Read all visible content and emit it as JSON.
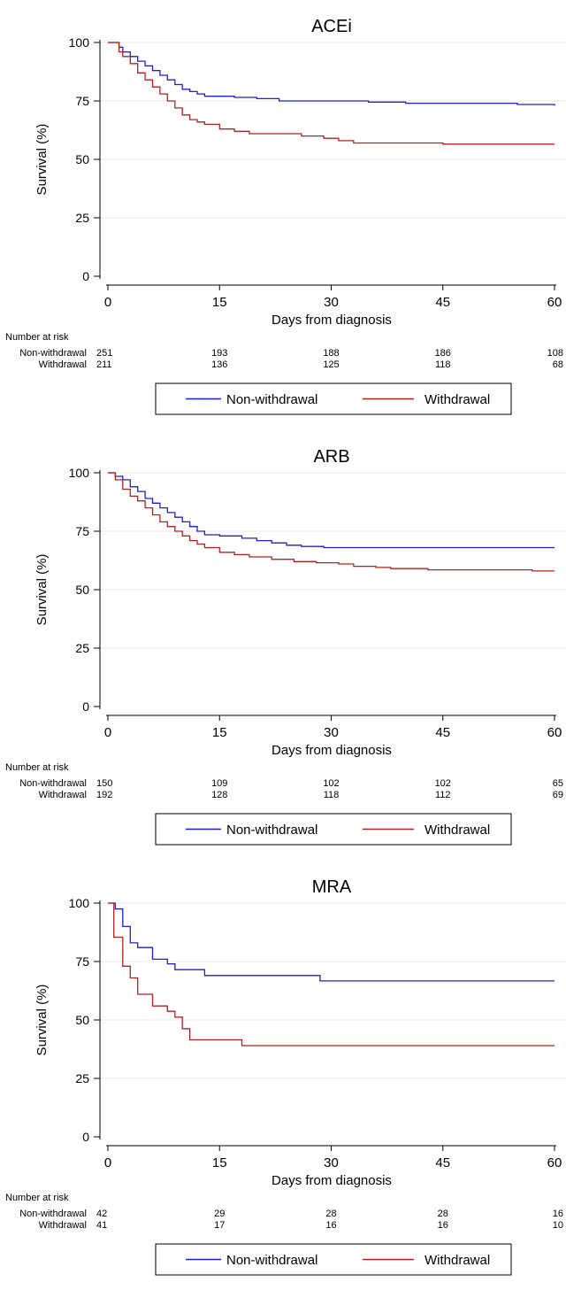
{
  "figure": {
    "ytitle": "Survival (%)",
    "xtitle": "Days from diagnosis",
    "risk_heading": "Number at risk",
    "legend": [
      "Non-withdrawal",
      "Withdrawal"
    ],
    "colors": {
      "non_withdrawal": "#1f1fd6",
      "withdrawal": "#b22222",
      "grid": "#e8e8e8"
    }
  },
  "chart_data": [
    {
      "type": "line",
      "title": "ACEi",
      "xlabel": "Days from diagnosis",
      "ylabel": "Survival (%)",
      "xlim": [
        0,
        60
      ],
      "ylim": [
        0,
        100
      ],
      "x_ticks": [
        0,
        15,
        30,
        45,
        60
      ],
      "y_ticks": [
        0,
        25,
        50,
        75,
        100
      ],
      "grid": true,
      "legend_position": "bottom",
      "series": [
        {
          "name": "Non-withdrawal",
          "color": "#1f1fd6",
          "points": [
            [
              0,
              100
            ],
            [
              1.5,
              98
            ],
            [
              2,
              96
            ],
            [
              3,
              94
            ],
            [
              4,
              92
            ],
            [
              5,
              90
            ],
            [
              6,
              88
            ],
            [
              7,
              86
            ],
            [
              8,
              84
            ],
            [
              9,
              82
            ],
            [
              10,
              80
            ],
            [
              11,
              79
            ],
            [
              12,
              78
            ],
            [
              13,
              77
            ],
            [
              17,
              76.5
            ],
            [
              20,
              76
            ],
            [
              23,
              75
            ],
            [
              30,
              75
            ],
            [
              35,
              74.5
            ],
            [
              40,
              74
            ],
            [
              50,
              74
            ],
            [
              55,
              73.5
            ],
            [
              60,
              73
            ]
          ]
        },
        {
          "name": "Withdrawal",
          "color": "#b22222",
          "points": [
            [
              0,
              100
            ],
            [
              1.5,
              96
            ],
            [
              2,
              94
            ],
            [
              3,
              91
            ],
            [
              4,
              87
            ],
            [
              5,
              84
            ],
            [
              6,
              81
            ],
            [
              7,
              78
            ],
            [
              8,
              75
            ],
            [
              9,
              72
            ],
            [
              10,
              69
            ],
            [
              11,
              67
            ],
            [
              12,
              66
            ],
            [
              13,
              65
            ],
            [
              15,
              63
            ],
            [
              17,
              62
            ],
            [
              19,
              61
            ],
            [
              26,
              60
            ],
            [
              29,
              59
            ],
            [
              31,
              58
            ],
            [
              33,
              57
            ],
            [
              42,
              57
            ],
            [
              45,
              56.5
            ],
            [
              60,
              56.5
            ]
          ]
        }
      ],
      "risk_table": {
        "x": [
          0,
          15,
          30,
          45,
          60
        ],
        "rows": [
          {
            "label": "Non-withdrawal",
            "values": [
              "251",
              "193",
              "188",
              "186",
              "108"
            ]
          },
          {
            "label": "Withdrawal",
            "values": [
              "211",
              "136",
              "125",
              "118",
              "68"
            ]
          }
        ]
      }
    },
    {
      "type": "line",
      "title": "ARB",
      "xlabel": "Days from diagnosis",
      "ylabel": "Survival (%)",
      "xlim": [
        0,
        60
      ],
      "ylim": [
        0,
        100
      ],
      "x_ticks": [
        0,
        15,
        30,
        45,
        60
      ],
      "y_ticks": [
        0,
        25,
        50,
        75,
        100
      ],
      "grid": true,
      "legend_position": "bottom",
      "series": [
        {
          "name": "Non-withdrawal",
          "color": "#1f1fd6",
          "points": [
            [
              0,
              100
            ],
            [
              1,
              98.5
            ],
            [
              2,
              97
            ],
            [
              3,
              94
            ],
            [
              4,
              92
            ],
            [
              5,
              89
            ],
            [
              6,
              87
            ],
            [
              7,
              85
            ],
            [
              8,
              83
            ],
            [
              9,
              81
            ],
            [
              10,
              79
            ],
            [
              11,
              77
            ],
            [
              12,
              75
            ],
            [
              13,
              73.5
            ],
            [
              15,
              73
            ],
            [
              18,
              72
            ],
            [
              20,
              71
            ],
            [
              22,
              70
            ],
            [
              24,
              69
            ],
            [
              26,
              68.5
            ],
            [
              29,
              68
            ],
            [
              60,
              68
            ]
          ]
        },
        {
          "name": "Withdrawal",
          "color": "#b22222",
          "points": [
            [
              0,
              100
            ],
            [
              1,
              97
            ],
            [
              2,
              93
            ],
            [
              3,
              90
            ],
            [
              4,
              88
            ],
            [
              5,
              85
            ],
            [
              6,
              82
            ],
            [
              7,
              79
            ],
            [
              8,
              77
            ],
            [
              9,
              75
            ],
            [
              10,
              73
            ],
            [
              11,
              71
            ],
            [
              12,
              69.5
            ],
            [
              13,
              68
            ],
            [
              15,
              66
            ],
            [
              17,
              65
            ],
            [
              19,
              64
            ],
            [
              22,
              63
            ],
            [
              25,
              62
            ],
            [
              28,
              61.5
            ],
            [
              31,
              61
            ],
            [
              33,
              60
            ],
            [
              36,
              59.5
            ],
            [
              38,
              59
            ],
            [
              43,
              58.5
            ],
            [
              55,
              58.5
            ],
            [
              57,
              58
            ],
            [
              60,
              58
            ]
          ]
        }
      ],
      "risk_table": {
        "x": [
          0,
          15,
          30,
          45,
          60
        ],
        "rows": [
          {
            "label": "Non-withdrawal",
            "values": [
              "150",
              "109",
              "102",
              "102",
              "65"
            ]
          },
          {
            "label": "Withdrawal",
            "values": [
              "192",
              "128",
              "118",
              "112",
              "69"
            ]
          }
        ]
      }
    },
    {
      "type": "line",
      "title": "MRA",
      "xlabel": "Days from diagnosis",
      "ylabel": "Survival (%)",
      "xlim": [
        0,
        60
      ],
      "ylim": [
        0,
        100
      ],
      "x_ticks": [
        0,
        15,
        30,
        45,
        60
      ],
      "y_ticks": [
        0,
        25,
        50,
        75,
        100
      ],
      "grid": true,
      "legend_position": "bottom",
      "series": [
        {
          "name": "Non-withdrawal",
          "color": "#1f1fd6",
          "points": [
            [
              0,
              100
            ],
            [
              1,
              97.5
            ],
            [
              2,
              90
            ],
            [
              3,
              83
            ],
            [
              4,
              81
            ],
            [
              6,
              76
            ],
            [
              8,
              74
            ],
            [
              9,
              71.5
            ],
            [
              13,
              69
            ],
            [
              28,
              69
            ],
            [
              28.5,
              66.7
            ],
            [
              60,
              66.7
            ]
          ]
        },
        {
          "name": "Withdrawal",
          "color": "#b22222",
          "points": [
            [
              0,
              100
            ],
            [
              0.8,
              85.4
            ],
            [
              2,
              73
            ],
            [
              3,
              68
            ],
            [
              4,
              61
            ],
            [
              6,
              56
            ],
            [
              8,
              53.7
            ],
            [
              9,
              51.2
            ],
            [
              10,
              46.3
            ],
            [
              11,
              41.5
            ],
            [
              18,
              39
            ],
            [
              60,
              39
            ]
          ]
        }
      ],
      "risk_table": {
        "x": [
          0,
          15,
          30,
          45,
          60
        ],
        "rows": [
          {
            "label": "Non-withdrawal",
            "values": [
              "42",
              "29",
              "28",
              "28",
              "16"
            ]
          },
          {
            "label": "Withdrawal",
            "values": [
              "41",
              "17",
              "16",
              "16",
              "10"
            ]
          }
        ]
      }
    }
  ]
}
